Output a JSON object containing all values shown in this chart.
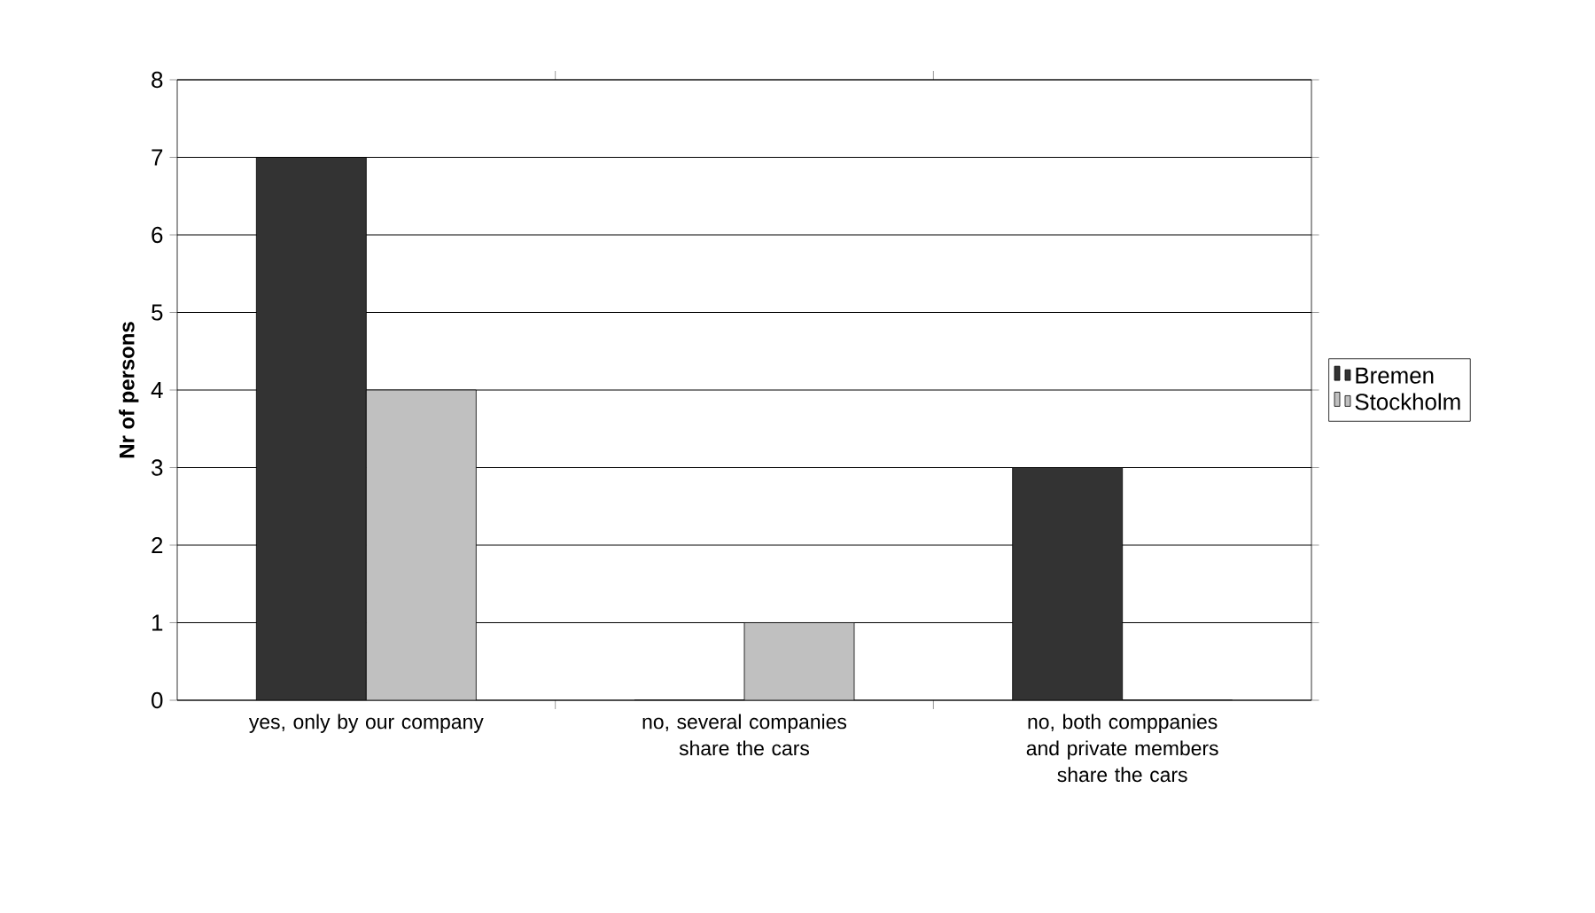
{
  "chart_data": {
    "type": "bar",
    "ylabel": "Nr of persons",
    "categories": [
      "yes, only by our company",
      "no, several companies share the cars",
      "no, both comppanies and private members share the cars"
    ],
    "series": [
      {
        "name": "Bremen",
        "color": "#333333",
        "values": [
          7,
          0,
          3
        ]
      },
      {
        "name": "Stockholm",
        "color": "#c0c0c0",
        "values": [
          4,
          1,
          0
        ]
      }
    ],
    "ylim": [
      0,
      8
    ],
    "yticks": [
      0,
      1,
      2,
      3,
      4,
      5,
      6,
      7,
      8
    ],
    "grid": "y",
    "legend": "right"
  }
}
